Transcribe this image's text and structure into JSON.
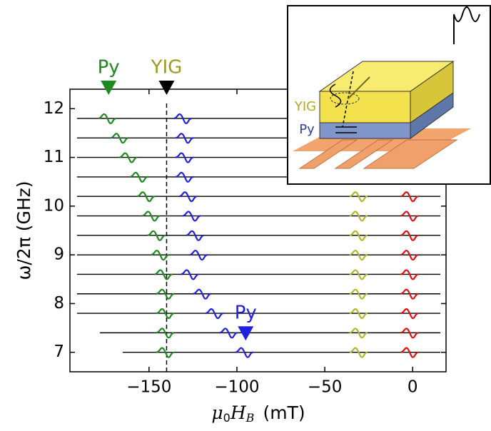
{
  "chart_data": {
    "type": "waterfall",
    "ylabel": "ω/2π (GHz)",
    "xlabel": {
      "mu": "μ",
      "mu_sub": "0",
      "H": "H",
      "H_sub": "B",
      "unit": "(mT)"
    },
    "xlim": [
      -195,
      19
    ],
    "ylim": [
      6.6,
      12.4
    ],
    "xticks": [
      {
        "value": -150,
        "label": "−150"
      },
      {
        "value": -100,
        "label": "−100"
      },
      {
        "value": -50,
        "label": "−50"
      },
      0
    ],
    "yticks": [
      7,
      8,
      9,
      10,
      11,
      12
    ],
    "trace_color": "#000000",
    "guide_x": -140,
    "traces": [
      {
        "frequency": 11.8,
        "x_start": -191,
        "resonances": [
          {
            "field": -174,
            "color": "#1e8a1e"
          },
          {
            "field": -131,
            "color": "#2020e0"
          }
        ]
      },
      {
        "frequency": 11.4,
        "x_start": -191,
        "resonances": [
          {
            "field": -167,
            "color": "#1e8a1e"
          },
          {
            "field": -130,
            "color": "#2020e0"
          }
        ]
      },
      {
        "frequency": 11.0,
        "x_start": -191,
        "resonances": [
          {
            "field": -162,
            "color": "#1e8a1e"
          },
          {
            "field": -130,
            "color": "#2020e0"
          }
        ]
      },
      {
        "frequency": 10.6,
        "x_start": -191,
        "resonances": [
          {
            "field": -156,
            "color": "#1e8a1e"
          },
          {
            "field": -130,
            "color": "#2020e0"
          }
        ]
      },
      {
        "frequency": 10.2,
        "x_start": -191,
        "resonances": [
          {
            "field": -152,
            "color": "#1e8a1e"
          },
          {
            "field": -128,
            "color": "#2020e0"
          },
          {
            "field": -31,
            "color": "#b5b52a"
          },
          {
            "field": -2,
            "color": "#e01010"
          }
        ]
      },
      {
        "frequency": 9.8,
        "x_start": -191,
        "resonances": [
          {
            "field": -149,
            "color": "#1e8a1e"
          },
          {
            "field": -126,
            "color": "#2020e0"
          },
          {
            "field": -31,
            "color": "#b5b52a"
          },
          {
            "field": -2,
            "color": "#e01010"
          }
        ]
      },
      {
        "frequency": 9.4,
        "x_start": -191,
        "resonances": [
          {
            "field": -146,
            "color": "#1e8a1e"
          },
          {
            "field": -124,
            "color": "#2020e0"
          },
          {
            "field": -31,
            "color": "#b5b52a"
          },
          {
            "field": -2,
            "color": "#e01010"
          }
        ]
      },
      {
        "frequency": 9.0,
        "x_start": -191,
        "resonances": [
          {
            "field": -144,
            "color": "#1e8a1e"
          },
          {
            "field": -122,
            "color": "#2020e0"
          },
          {
            "field": -31,
            "color": "#b5b52a"
          },
          {
            "field": -2,
            "color": "#e01010"
          }
        ]
      },
      {
        "frequency": 8.6,
        "x_start": -191,
        "resonances": [
          {
            "field": -142,
            "color": "#1e8a1e"
          },
          {
            "field": -127,
            "color": "#2020e0"
          },
          {
            "field": -31,
            "color": "#b5b52a"
          },
          {
            "field": -2,
            "color": "#e01010"
          }
        ]
      },
      {
        "frequency": 8.2,
        "x_start": -191,
        "resonances": [
          {
            "field": -141,
            "color": "#1e8a1e"
          },
          {
            "field": -120,
            "color": "#2020e0"
          },
          {
            "field": -31,
            "color": "#b5b52a"
          },
          {
            "field": -2,
            "color": "#e01010"
          }
        ]
      },
      {
        "frequency": 7.8,
        "x_start": -191,
        "resonances": [
          {
            "field": -141,
            "color": "#1e8a1e"
          },
          {
            "field": -113,
            "color": "#2020e0"
          },
          {
            "field": -31,
            "color": "#b5b52a"
          },
          {
            "field": -2,
            "color": "#e01010"
          }
        ]
      },
      {
        "frequency": 7.4,
        "x_start": -178,
        "resonances": [
          {
            "field": -141,
            "color": "#1e8a1e"
          },
          {
            "field": -105,
            "color": "#2020e0"
          },
          {
            "field": -31,
            "color": "#b5b52a"
          },
          {
            "field": -2,
            "color": "#e01010"
          }
        ]
      },
      {
        "frequency": 7.0,
        "x_start": -165,
        "resonances": [
          {
            "field": -141,
            "color": "#1e8a1e"
          },
          {
            "field": -96,
            "color": "#2020e0"
          },
          {
            "field": -31,
            "color": "#b5b52a"
          },
          {
            "field": -2,
            "color": "#e01010"
          }
        ]
      }
    ],
    "annotations": [
      {
        "text": "Py",
        "x": -173,
        "color": "#1e8a1e"
      },
      {
        "text": "YIG",
        "x": -140,
        "color": "#9a9a20",
        "marker_color": "#000000"
      },
      {
        "text": "Py",
        "x": -95,
        "y": 7.3,
        "color": "#2020e0"
      }
    ]
  },
  "inset": {
    "labels": [
      "YIG",
      "Py"
    ]
  }
}
